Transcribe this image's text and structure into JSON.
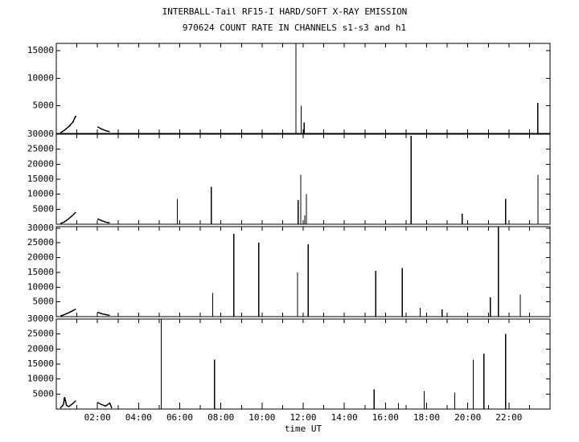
{
  "chart_data": [
    {
      "type": "spike",
      "title": "INTERBALL-Tail RF15-I HARD/SOFT X-RAY EMISSION",
      "subtitle": "970624  COUNT RATE IN CHANNELS s1-s3 and h1",
      "xlim": [
        0,
        24
      ],
      "ylim": [
        0,
        16300
      ],
      "yticks": [
        5000,
        10000,
        15000
      ],
      "xminor": [
        1,
        2,
        3,
        4,
        5,
        6,
        7,
        8,
        9,
        10,
        11,
        12,
        13,
        14,
        15,
        16,
        17,
        18,
        19,
        20,
        21,
        22,
        23
      ],
      "x": [
        11.65,
        11.9,
        12.05,
        23.4
      ],
      "values": [
        16300,
        5000,
        2000,
        5500
      ],
      "curve_x": [
        0.2,
        0.4,
        0.6,
        0.8,
        0.9,
        0.95,
        null,
        2.0,
        2.2,
        2.4,
        2.6
      ],
      "curve_values": [
        100,
        600,
        1200,
        2000,
        2800,
        3200,
        null,
        1200,
        800,
        500,
        300
      ],
      "color": "#000000"
    },
    {
      "type": "spike",
      "xlim": [
        0,
        24
      ],
      "ylim": [
        0,
        30000
      ],
      "yticks": [
        5000,
        10000,
        15000,
        20000,
        25000,
        30000
      ],
      "xminor": [
        1,
        2,
        3,
        4,
        5,
        6,
        7,
        8,
        9,
        10,
        11,
        12,
        13,
        14,
        15,
        16,
        17,
        18,
        19,
        20,
        21,
        22,
        23
      ],
      "x": [
        5.88,
        7.53,
        11.76,
        11.88,
        12.08,
        12.16,
        17.25,
        19.73,
        21.84,
        23.41
      ],
      "values": [
        8500,
        12500,
        8000,
        16500,
        3000,
        10000,
        29500,
        3500,
        8500,
        16500
      ],
      "curve_x": [
        0.2,
        0.4,
        0.6,
        0.8,
        0.95,
        null,
        2.0,
        2.2,
        2.4,
        2.6
      ],
      "curve_values": [
        200,
        800,
        1800,
        3000,
        4000,
        null,
        1800,
        1200,
        700,
        400
      ],
      "color": "#000000"
    },
    {
      "type": "spike",
      "xlim": [
        0,
        24
      ],
      "ylim": [
        0,
        30500
      ],
      "yticks": [
        5000,
        10000,
        15000,
        20000,
        25000,
        30000
      ],
      "xminor": [
        1,
        2,
        3,
        4,
        5,
        6,
        7,
        8,
        9,
        10,
        11,
        12,
        13,
        14,
        15,
        16,
        17,
        18,
        19,
        20,
        21,
        22,
        23
      ],
      "x": [
        7.6,
        8.63,
        9.84,
        11.73,
        12.24,
        15.53,
        16.82,
        17.69,
        18.75,
        21.1,
        21.49,
        22.55
      ],
      "values": [
        8000,
        28000,
        25000,
        15000,
        24500,
        15500,
        16500,
        3000,
        2500,
        6500,
        30400,
        7500
      ],
      "curve_x": [
        0.2,
        0.4,
        0.6,
        0.8,
        0.95,
        null,
        2.0,
        2.2,
        2.4,
        2.6
      ],
      "curve_values": [
        200,
        700,
        1300,
        2000,
        2600,
        null,
        1500,
        1000,
        700,
        400
      ],
      "color": "#000000"
    },
    {
      "type": "spike",
      "xlabel": "time UT",
      "xlim": [
        0,
        24
      ],
      "ylim": [
        0,
        30000
      ],
      "yticks": [
        5000,
        10000,
        15000,
        20000,
        25000,
        30000
      ],
      "xminor": [
        1,
        2,
        3,
        4,
        5,
        6,
        7,
        8,
        9,
        10,
        11,
        12,
        13,
        14,
        15,
        16,
        17,
        18,
        19,
        20,
        21,
        22,
        23
      ],
      "xticks": [
        {
          "value": 2,
          "label": "02:00"
        },
        {
          "value": 4,
          "label": "04:00"
        },
        {
          "value": 6,
          "label": "06:00"
        },
        {
          "value": 8,
          "label": "08:00"
        },
        {
          "value": 10,
          "label": "10:00"
        },
        {
          "value": 12,
          "label": "12:00"
        },
        {
          "value": 14,
          "label": "14:00"
        },
        {
          "value": 16,
          "label": "16:00"
        },
        {
          "value": 18,
          "label": "18:00"
        },
        {
          "value": 20,
          "label": "20:00"
        },
        {
          "value": 22,
          "label": "22:00"
        }
      ],
      "x": [
        5.1,
        7.69,
        15.45,
        16.63,
        17.88,
        19.37,
        20.27,
        20.78,
        21.84
      ],
      "values": [
        30000,
        16500,
        6500,
        2000,
        6000,
        5500,
        16500,
        18500,
        25000
      ],
      "curve_x": [
        0.2,
        0.35,
        0.4,
        0.5,
        0.6,
        0.8,
        0.95,
        null,
        2.0,
        2.2,
        2.4,
        2.6,
        2.7
      ],
      "curve_values": [
        300,
        1500,
        4000,
        1200,
        800,
        1800,
        2800,
        null,
        2200,
        1500,
        1000,
        2000,
        300
      ],
      "color": "#000000"
    }
  ]
}
